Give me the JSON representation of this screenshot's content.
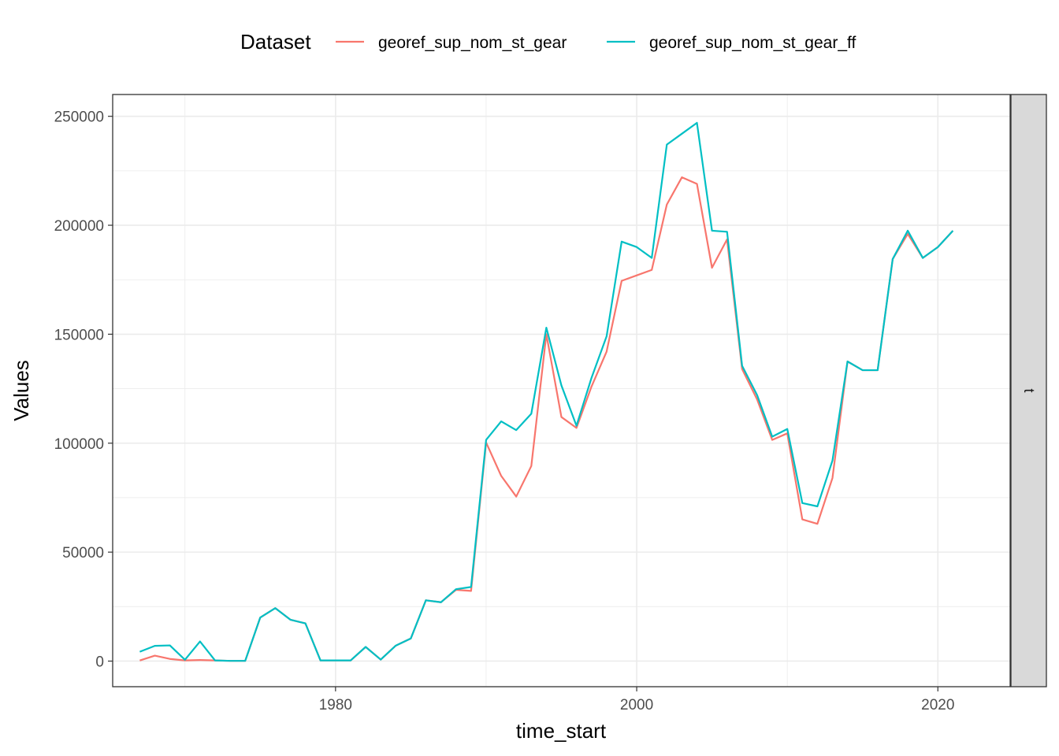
{
  "chart_data": {
    "type": "line",
    "xlabel": "time_start",
    "ylabel": "Values",
    "legend_title": "Dataset",
    "legend_position": "top",
    "facet_label": "t",
    "grid": true,
    "xlim": [
      1965.2,
      2024.8
    ],
    "ylim": [
      -11750,
      260000
    ],
    "x_ticks": [
      1980,
      2000,
      2020
    ],
    "y_ticks": [
      0,
      50000,
      100000,
      150000,
      200000,
      250000
    ],
    "x_tick_labels": [
      "1980",
      "2000",
      "2020"
    ],
    "y_tick_labels": [
      "0",
      "50000",
      "100000",
      "150000",
      "200000",
      "250000"
    ],
    "x": [
      1967,
      1968,
      1969,
      1970,
      1971,
      1972,
      1973,
      1974,
      1975,
      1976,
      1977,
      1978,
      1979,
      1980,
      1981,
      1982,
      1983,
      1984,
      1985,
      1986,
      1987,
      1988,
      1989,
      1990,
      1991,
      1992,
      1993,
      1994,
      1995,
      1996,
      1997,
      1998,
      1999,
      2000,
      2001,
      2002,
      2003,
      2004,
      2005,
      2006,
      2007,
      2008,
      2009,
      2010,
      2011,
      2012,
      2013,
      2014,
      2015,
      2016,
      2017,
      2018,
      2019,
      2020,
      2021
    ],
    "series": [
      {
        "name": "georef_sup_nom_st_gear",
        "color": "#F8766D",
        "values": [
          300,
          2500,
          1000,
          300,
          500,
          300,
          100,
          100,
          20000,
          24300,
          19000,
          17300,
          300,
          300,
          300,
          6500,
          700,
          7100,
          10400,
          27900,
          27000,
          32700,
          32200,
          100300,
          85000,
          75500,
          89500,
          150000,
          112000,
          107000,
          126000,
          142000,
          174500,
          177000,
          179500,
          209500,
          222000,
          219000,
          180500,
          193500,
          134000,
          120000,
          101500,
          104500,
          65000,
          63000,
          84000,
          137500,
          133500,
          133500,
          184500,
          196000,
          185000,
          190000,
          197500
        ]
      },
      {
        "name": "georef_sup_nom_st_gear_ff",
        "color": "#00BFC4",
        "values": [
          4300,
          7000,
          7200,
          600,
          9000,
          300,
          100,
          100,
          20000,
          24300,
          19000,
          17300,
          300,
          300,
          300,
          6500,
          700,
          7100,
          10400,
          27900,
          27000,
          33000,
          34000,
          101500,
          110000,
          106000,
          113500,
          153000,
          126500,
          108000,
          130000,
          149000,
          192500,
          190000,
          185000,
          237000,
          242000,
          247000,
          197500,
          197000,
          135500,
          122000,
          103000,
          106500,
          72500,
          71000,
          92000,
          137500,
          133500,
          133500,
          184500,
          197500,
          185000,
          190000,
          197500
        ]
      }
    ]
  }
}
